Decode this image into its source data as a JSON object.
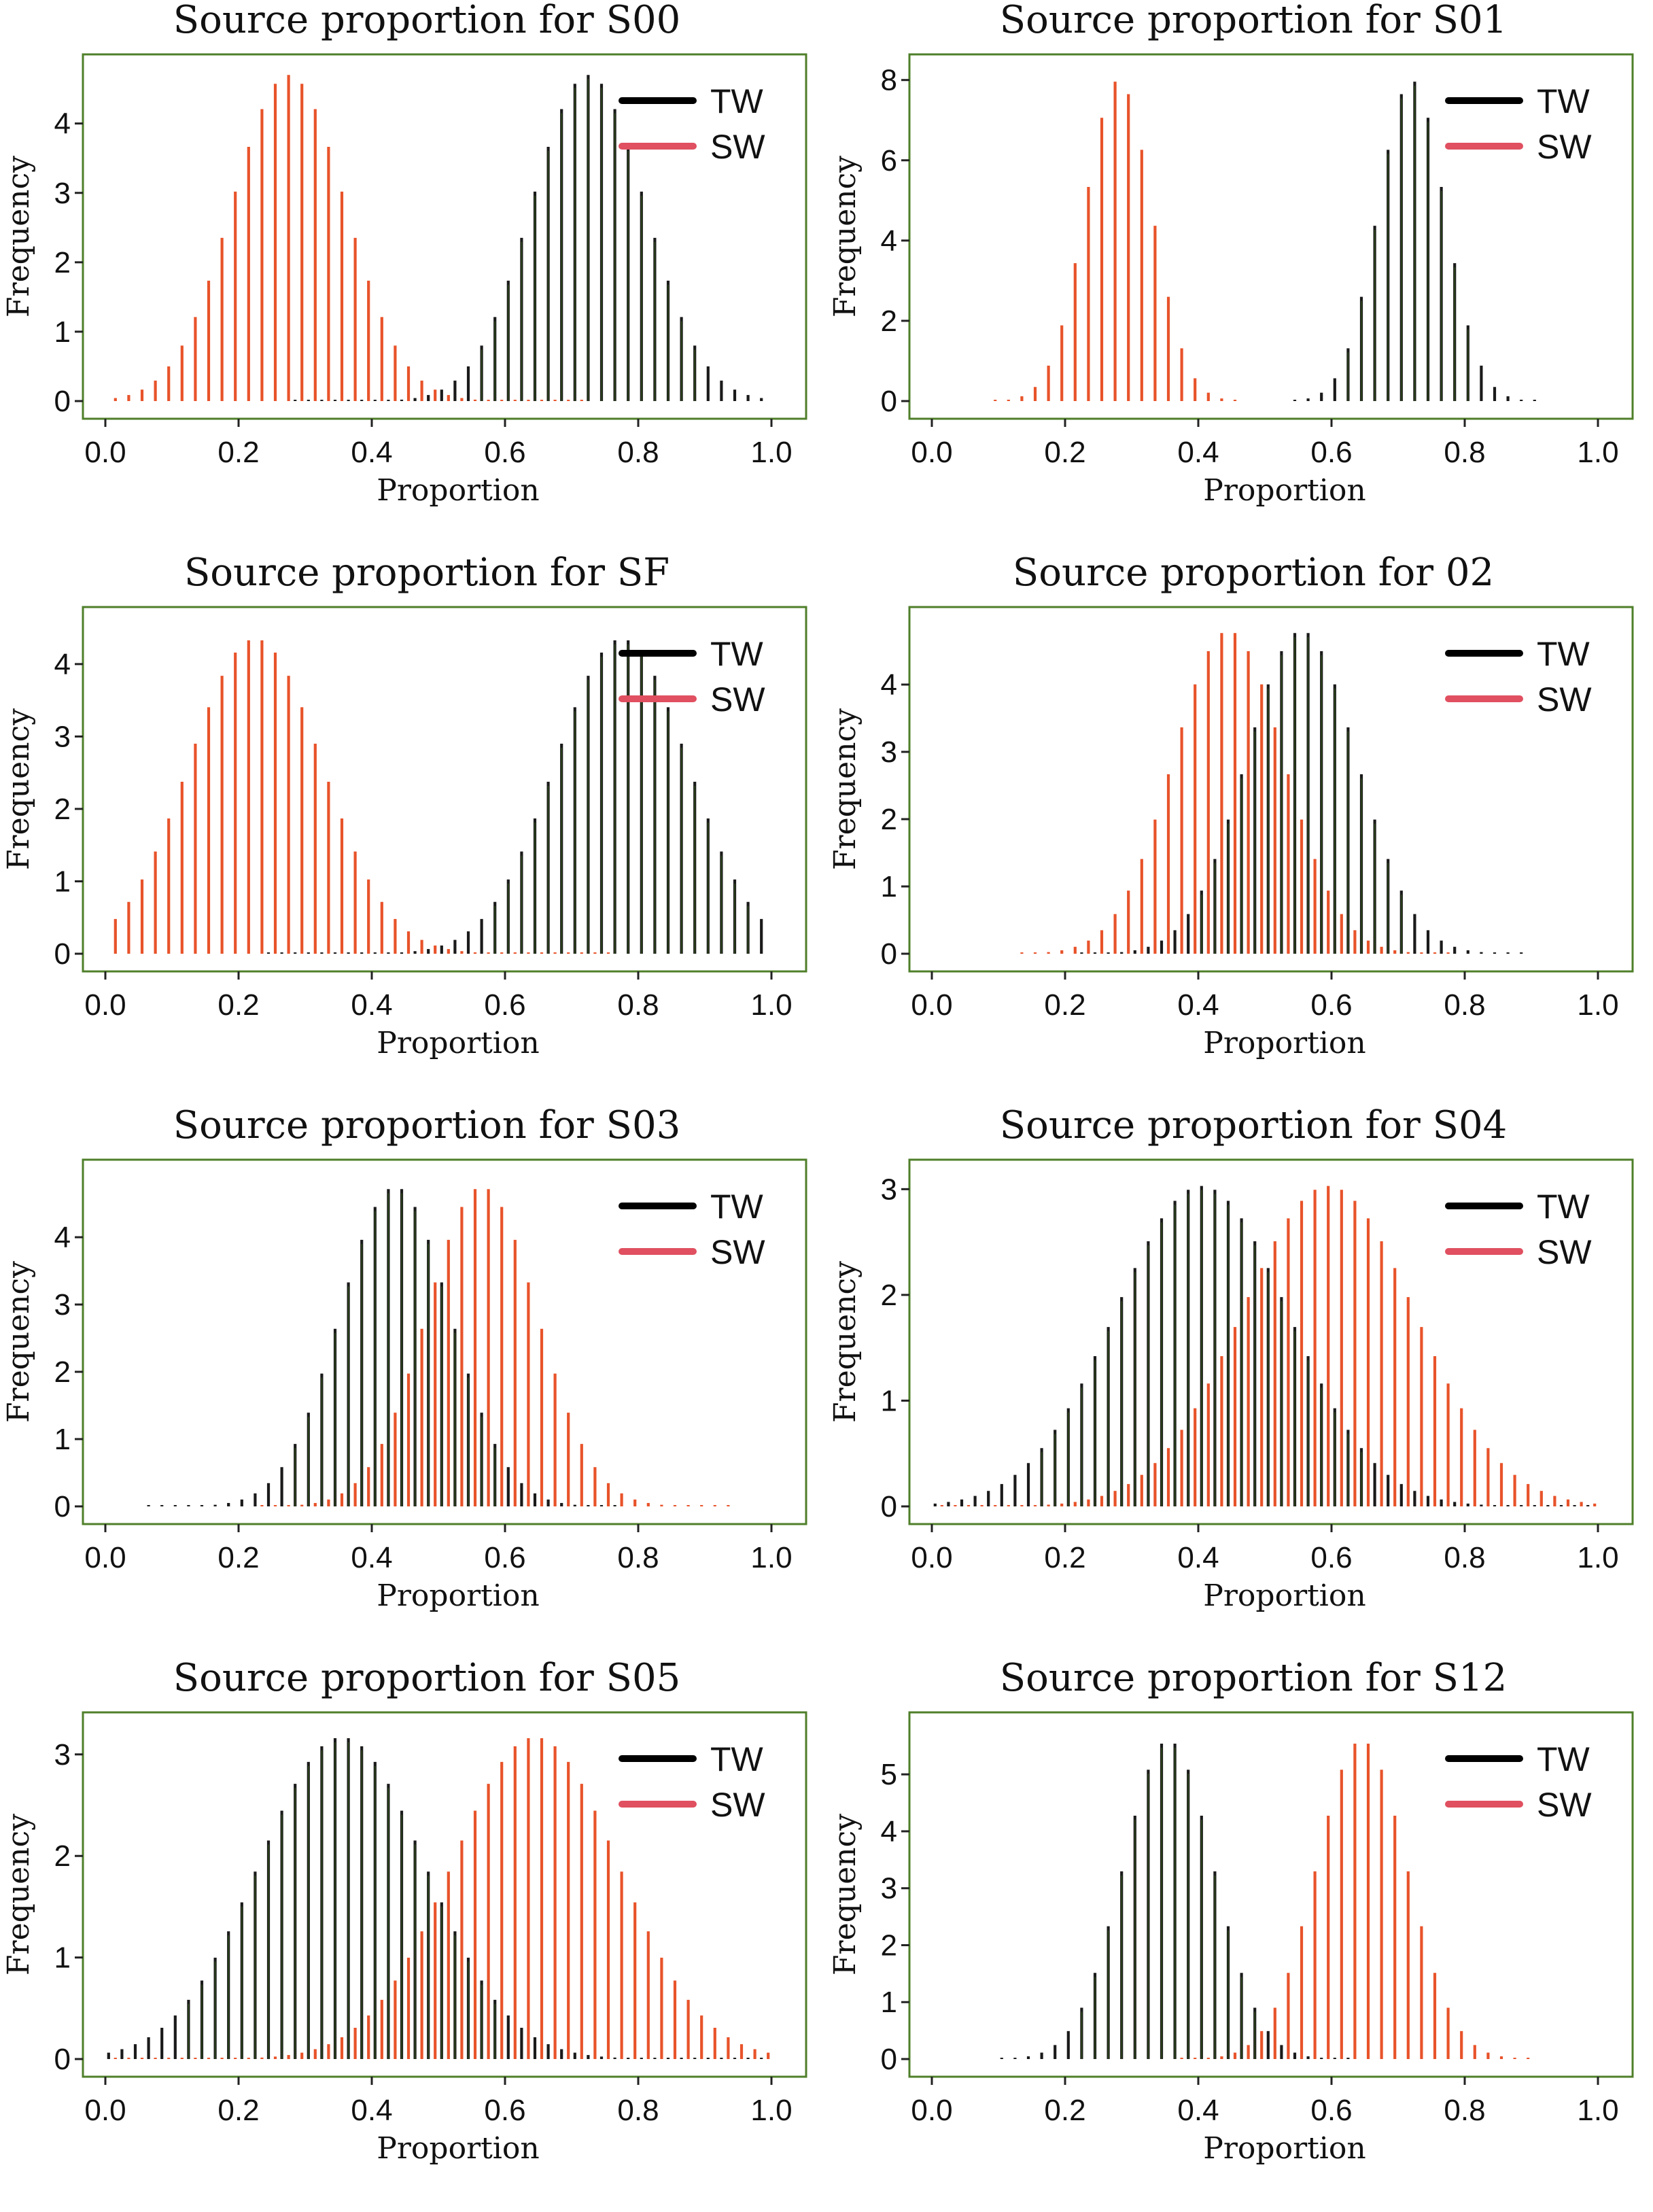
{
  "legend": {
    "tw_label": "TW",
    "sw_label": "SW"
  },
  "colors": {
    "tw": "#1a1a1a",
    "tw_inner": "#2f4a1c",
    "sw": "#e8532a",
    "legend_tw": "#000000",
    "legend_sw": "#e05060",
    "frame": "#4f7f2a"
  },
  "chart_data": [
    {
      "type": "bar",
      "title": "Source proportion for S00",
      "xlabel": "Proportion",
      "ylabel": "Frequency",
      "xlim": [
        0,
        1
      ],
      "ylim": [
        0,
        4.8
      ],
      "xticks": [
        "0.0",
        "0.2",
        "0.4",
        "0.6",
        "0.8",
        "1.0"
      ],
      "yticks": [
        "0",
        "1",
        "2",
        "3",
        "4"
      ],
      "yticks_values": [
        0,
        1,
        2,
        3,
        4
      ],
      "series": [
        {
          "name": "TW",
          "distribution": "normal",
          "mean": 0.73,
          "sd": 0.085,
          "peak": 4.7,
          "min": 0.28,
          "max": 0.99
        },
        {
          "name": "SW",
          "distribution": "normal",
          "mean": 0.27,
          "sd": 0.085,
          "peak": 4.7,
          "min": 0.01,
          "max": 0.72
        }
      ]
    },
    {
      "type": "bar",
      "title": "Source proportion for S01",
      "xlabel": "Proportion",
      "ylabel": "Frequency",
      "xlim": [
        0,
        1
      ],
      "ylim": [
        0,
        8.3
      ],
      "xticks": [
        "0.0",
        "0.2",
        "0.4",
        "0.6",
        "0.8",
        "1.0"
      ],
      "yticks": [
        "0",
        "2",
        "4",
        "6",
        "8"
      ],
      "yticks_values": [
        0,
        2,
        4,
        6,
        8
      ],
      "series": [
        {
          "name": "TW",
          "distribution": "normal",
          "mean": 0.725,
          "sd": 0.05,
          "peak": 8.0,
          "min": 0.54,
          "max": 0.91
        },
        {
          "name": "SW",
          "distribution": "normal",
          "mean": 0.275,
          "sd": 0.05,
          "peak": 8.0,
          "min": 0.09,
          "max": 0.46
        }
      ]
    },
    {
      "type": "bar",
      "title": "Source proportion for SF",
      "xlabel": "Proportion",
      "ylabel": "Frequency",
      "xlim": [
        0,
        1
      ],
      "ylim": [
        0,
        4.6
      ],
      "xticks": [
        "0.0",
        "0.2",
        "0.4",
        "0.6",
        "0.8",
        "1.0"
      ],
      "yticks": [
        "0",
        "1",
        "2",
        "3",
        "4"
      ],
      "yticks_values": [
        0,
        1,
        2,
        3,
        4
      ],
      "series": [
        {
          "name": "TW",
          "distribution": "normal",
          "mean": 0.78,
          "sd": 0.1,
          "peak": 4.35,
          "min": 0.25,
          "max": 0.99
        },
        {
          "name": "SW",
          "distribution": "normal",
          "mean": 0.22,
          "sd": 0.1,
          "peak": 4.35,
          "min": 0.01,
          "max": 0.75
        }
      ]
    },
    {
      "type": "bar",
      "title": "Source proportion for 02",
      "xlabel": "Proportion",
      "ylabel": "Frequency",
      "xlim": [
        0,
        1
      ],
      "ylim": [
        0,
        4.95
      ],
      "xticks": [
        "0.0",
        "0.2",
        "0.4",
        "0.6",
        "0.8",
        "1.0"
      ],
      "yticks": [
        "0",
        "1",
        "2",
        "3",
        "4"
      ],
      "yticks_values": [
        0,
        1,
        2,
        3,
        4
      ],
      "series": [
        {
          "name": "TW",
          "distribution": "normal",
          "mean": 0.56,
          "sd": 0.083,
          "peak": 4.8,
          "min": 0.22,
          "max": 0.89
        },
        {
          "name": "SW",
          "distribution": "normal",
          "mean": 0.44,
          "sd": 0.083,
          "peak": 4.8,
          "min": 0.12,
          "max": 0.78
        }
      ]
    },
    {
      "type": "bar",
      "title": "Source proportion for S03",
      "xlabel": "Proportion",
      "ylabel": "Frequency",
      "xlim": [
        0,
        1
      ],
      "ylim": [
        0,
        4.95
      ],
      "xticks": [
        "0.0",
        "0.2",
        "0.4",
        "0.6",
        "0.8",
        "1.0"
      ],
      "yticks": [
        "0",
        "1",
        "2",
        "3",
        "4"
      ],
      "yticks_values": [
        0,
        1,
        2,
        3,
        4
      ],
      "series": [
        {
          "name": "TW",
          "distribution": "normal",
          "mean": 0.44,
          "sd": 0.083,
          "peak": 4.75,
          "min": 0.07,
          "max": 0.78
        },
        {
          "name": "SW",
          "distribution": "normal",
          "mean": 0.56,
          "sd": 0.083,
          "peak": 4.75,
          "min": 0.22,
          "max": 0.93
        }
      ]
    },
    {
      "type": "bar",
      "title": "Source proportion for S04",
      "xlabel": "Proportion",
      "ylabel": "Frequency",
      "xlim": [
        0,
        1
      ],
      "ylim": [
        0,
        3.15
      ],
      "xticks": [
        "0.0",
        "0.2",
        "0.4",
        "0.6",
        "0.8",
        "1.0"
      ],
      "yticks": [
        "0",
        "1",
        "2",
        "3"
      ],
      "yticks_values": [
        0,
        1,
        2,
        3
      ],
      "series": [
        {
          "name": "TW",
          "distribution": "normal",
          "mean": 0.41,
          "sd": 0.13,
          "peak": 3.03,
          "min": 0.01,
          "max": 0.99
        },
        {
          "name": "SW",
          "distribution": "normal",
          "mean": 0.59,
          "sd": 0.13,
          "peak": 3.03,
          "min": 0.01,
          "max": 0.99
        }
      ]
    },
    {
      "type": "bar",
      "title": "Source proportion for S05",
      "xlabel": "Proportion",
      "ylabel": "Frequency",
      "xlim": [
        0,
        1
      ],
      "ylim": [
        0,
        3.28
      ],
      "xticks": [
        "0.0",
        "0.2",
        "0.4",
        "0.6",
        "0.8",
        "1.0"
      ],
      "yticks": [
        "0",
        "1",
        "2",
        "3"
      ],
      "yticks_values": [
        0,
        1,
        2,
        3
      ],
      "series": [
        {
          "name": "TW",
          "distribution": "normal",
          "mean": 0.36,
          "sd": 0.125,
          "peak": 3.17,
          "min": 0.01,
          "max": 0.99
        },
        {
          "name": "SW",
          "distribution": "normal",
          "mean": 0.64,
          "sd": 0.125,
          "peak": 3.17,
          "min": 0.01,
          "max": 0.99
        }
      ]
    },
    {
      "type": "bar",
      "title": "Source proportion for S12",
      "xlabel": "Proportion",
      "ylabel": "Frequency",
      "xlim": [
        0,
        1
      ],
      "ylim": [
        0,
        5.85
      ],
      "xticks": [
        "0.0",
        "0.2",
        "0.4",
        "0.6",
        "0.8",
        "1.0"
      ],
      "yticks": [
        "0",
        "1",
        "2",
        "3",
        "4",
        "5"
      ],
      "yticks_values": [
        0,
        1,
        2,
        3,
        4,
        5
      ],
      "series": [
        {
          "name": "TW",
          "distribution": "normal",
          "mean": 0.36,
          "sd": 0.068,
          "peak": 5.6,
          "min": 0.11,
          "max": 0.64
        },
        {
          "name": "SW",
          "distribution": "normal",
          "mean": 0.64,
          "sd": 0.068,
          "peak": 5.6,
          "min": 0.36,
          "max": 0.89
        }
      ]
    }
  ]
}
